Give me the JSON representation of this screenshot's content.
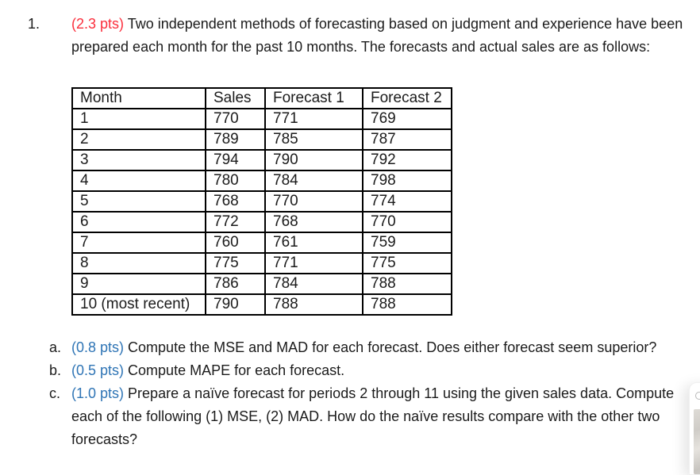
{
  "problem": {
    "number": "1.",
    "points": "(2.3 pts)",
    "text": "Two independent methods of forecasting based on judgment and experience have been prepared each month for the past 10 months. The forecasts and actual sales are as follows:"
  },
  "table": {
    "headers": [
      "Month",
      "Sales",
      "Forecast 1",
      "Forecast 2"
    ],
    "rows": [
      [
        "1",
        "770",
        "771",
        "769"
      ],
      [
        "2",
        "789",
        "785",
        "787"
      ],
      [
        "3",
        "794",
        "790",
        "792"
      ],
      [
        "4",
        "780",
        "784",
        "798"
      ],
      [
        "5",
        "768",
        "770",
        "774"
      ],
      [
        "6",
        "772",
        "768",
        "770"
      ],
      [
        "7",
        "760",
        "761",
        "759"
      ],
      [
        "8",
        "775",
        "771",
        "775"
      ],
      [
        "9",
        "786",
        "784",
        "788"
      ],
      [
        "10 (most recent)",
        "790",
        "788",
        "788"
      ]
    ]
  },
  "subquestions": [
    {
      "label": "a.",
      "points": "(0.8 pts)",
      "text": "Compute the MSE and MAD for each forecast. Does either forecast seem superior?"
    },
    {
      "label": "b.",
      "points": "(0.5 pts)",
      "text": "Compute MAPE for each forecast."
    },
    {
      "label": "c.",
      "points": "(1.0 pts)",
      "text": "Prepare a naïve forecast for periods 2 through 11 using the given sales data. Compute each of the following (1) MSE, (2) MAD. How do the naïve results compare with the other two forecasts?"
    }
  ],
  "colors": {
    "points_red": "#fb2e3c",
    "points_blue": "#2e74b5",
    "body_text": "#1b1b1b",
    "table_border": "#000000"
  }
}
